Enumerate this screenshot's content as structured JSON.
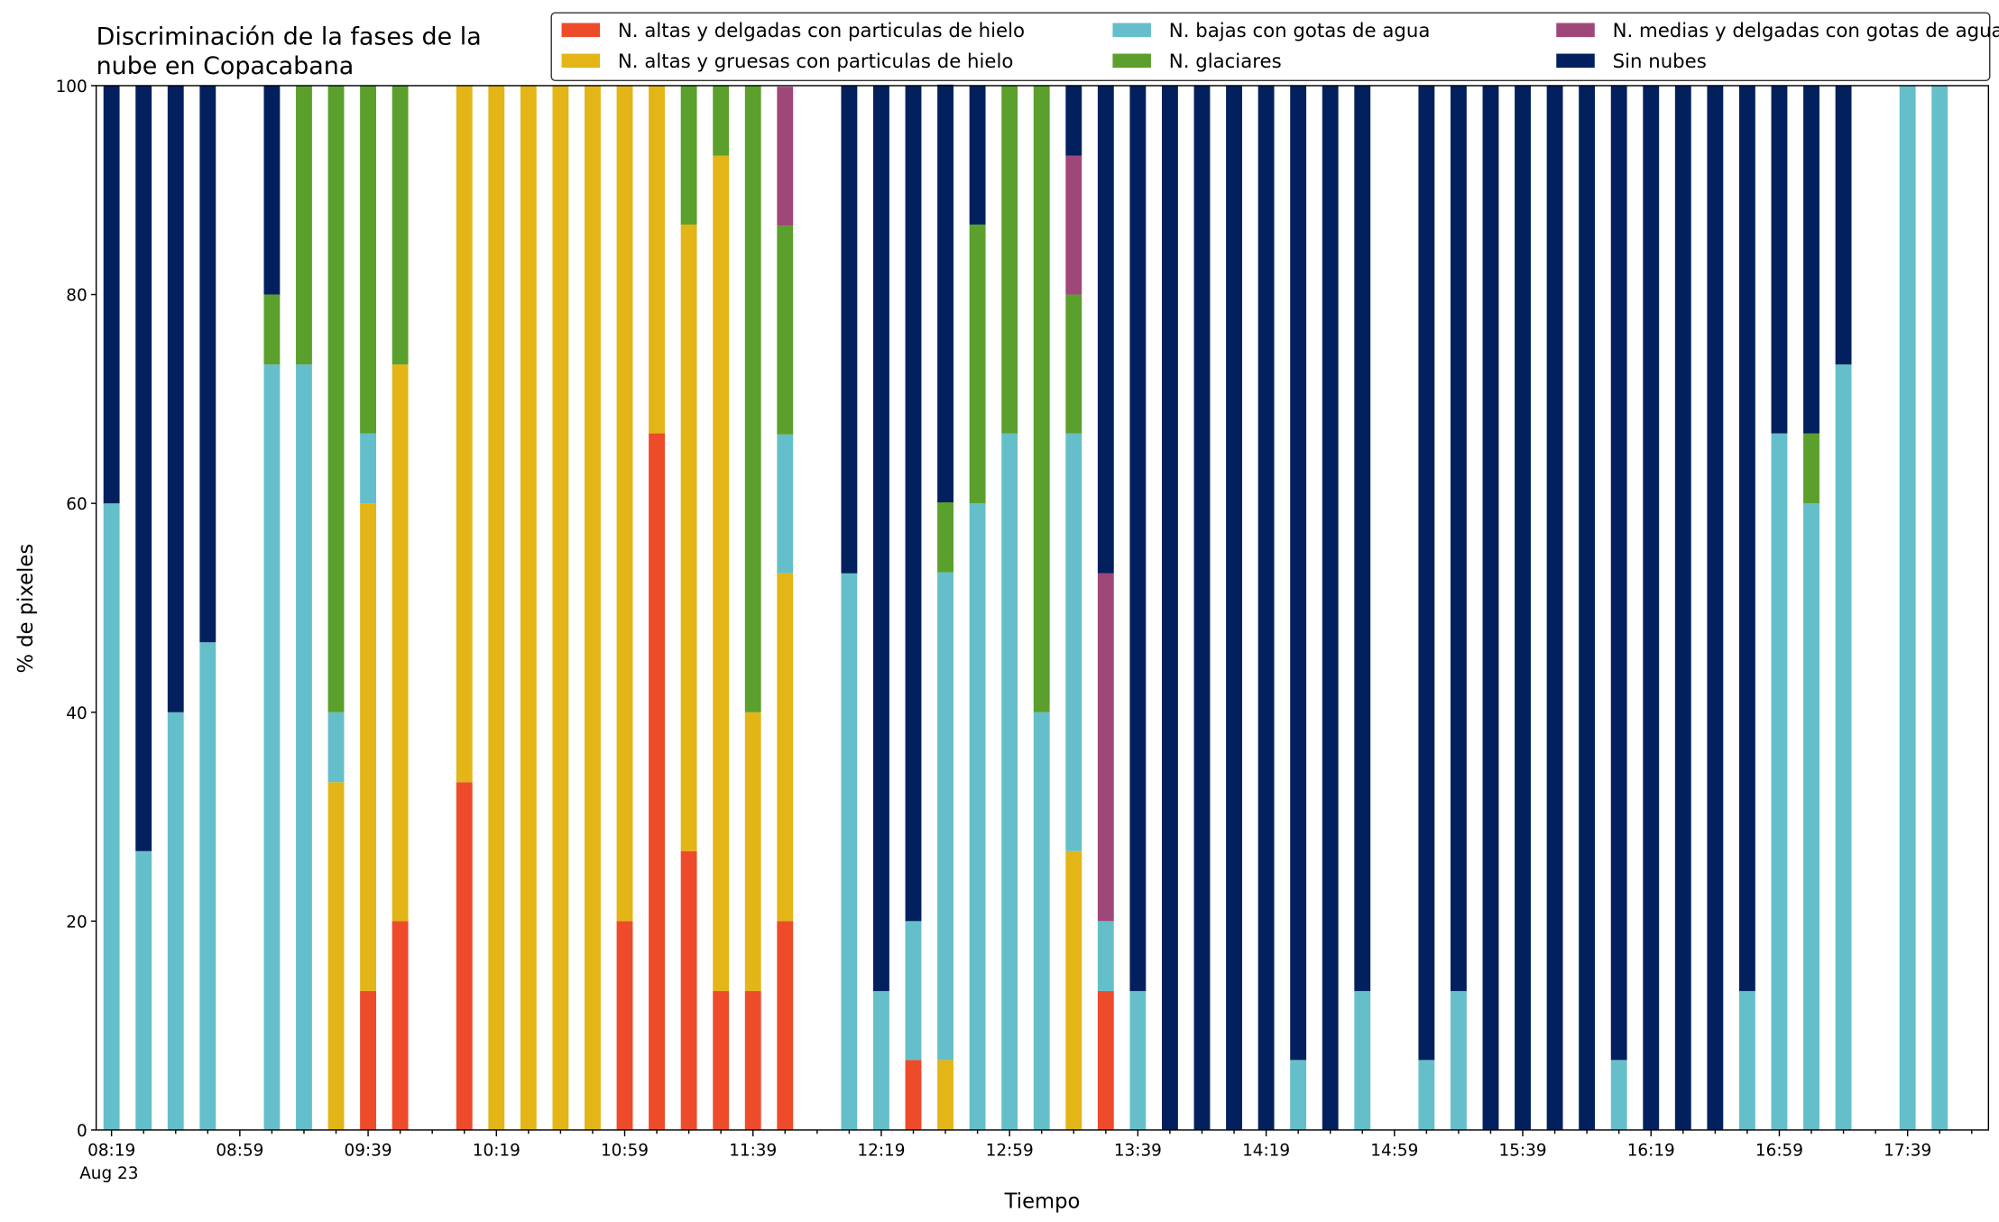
{
  "chart_data": {
    "type": "stacked_bar",
    "title": [
      "Discriminación de la fases de la",
      "nube en Copacabana"
    ],
    "x_label": "Tiempo",
    "y_label": "% de pixeles",
    "x_date_label": "Aug 23",
    "categories": [
      "08:19",
      null,
      null,
      null,
      "08:59",
      null,
      null,
      null,
      "09:39",
      null,
      null,
      null,
      "10:19",
      null,
      null,
      null,
      "10:59",
      null,
      null,
      null,
      "11:39",
      null,
      null,
      null,
      "12:19",
      null,
      null,
      null,
      "12:59",
      null,
      null,
      null,
      "13:39",
      null,
      null,
      null,
      "14:19",
      null,
      null,
      null,
      "14:59",
      null,
      null,
      null,
      "15:39",
      null,
      null,
      null,
      "16:19",
      null,
      null,
      null,
      "16:59",
      null,
      null,
      null,
      "17:39",
      null
    ],
    "ylim": [
      0,
      100
    ],
    "yticks": [
      0,
      20,
      40,
      60,
      80,
      100
    ],
    "grid": false,
    "legend_columns": 3,
    "series": [
      {
        "name": "N. altas y delgadas con particulas de hielo",
        "color": "#ee4b2b",
        "values": [
          0,
          0,
          0,
          0,
          0,
          0,
          0,
          0,
          13.3,
          20,
          0,
          33.3,
          0,
          0,
          0,
          0,
          20,
          66.7,
          26.7,
          13.3,
          13.3,
          20,
          0,
          0,
          0,
          6.7,
          0,
          0,
          0,
          0,
          0,
          13.3,
          0,
          0,
          0,
          0,
          0,
          0,
          0,
          0,
          0,
          0,
          0,
          0,
          0,
          0,
          0,
          0,
          0,
          0,
          0,
          0,
          0,
          0,
          0,
          0,
          0,
          0
        ]
      },
      {
        "name": "N. altas y gruesas con particulas de hielo",
        "color": "#e3b517",
        "values": [
          0,
          0,
          0,
          0,
          0,
          0,
          0,
          33.3,
          46.7,
          53.3,
          0,
          66.7,
          100,
          100,
          100,
          100,
          80,
          33.3,
          60,
          80,
          26.7,
          33.3,
          0,
          0,
          0,
          0,
          6.7,
          0,
          0,
          0,
          26.7,
          0,
          0,
          0,
          0,
          0,
          0,
          0,
          0,
          0,
          0,
          0,
          0,
          0,
          0,
          0,
          0,
          0,
          0,
          0,
          0,
          0,
          0,
          0,
          0,
          0,
          0,
          0
        ]
      },
      {
        "name": "N. bajas con gotas de agua",
        "color": "#65bfca",
        "values": [
          60,
          26.7,
          40,
          46.7,
          0,
          73.3,
          73.3,
          6.7,
          6.7,
          0,
          0,
          0,
          0,
          0,
          0,
          0,
          0,
          0,
          0,
          0,
          0,
          13.3,
          0,
          53.3,
          13.3,
          13.3,
          46.7,
          60,
          66.7,
          40,
          40,
          6.7,
          13.3,
          0,
          0,
          0,
          0,
          6.7,
          0,
          13.3,
          0,
          6.7,
          13.3,
          0,
          0,
          0,
          0,
          6.7,
          0,
          0,
          0,
          13.3,
          66.7,
          60,
          73.3,
          0,
          100,
          100
        ]
      },
      {
        "name": "N. glaciares",
        "color": "#5b9f2c",
        "values": [
          0,
          0,
          0,
          0,
          0,
          6.7,
          26.7,
          60,
          33.3,
          26.7,
          0,
          0,
          0,
          0,
          0,
          0,
          0,
          0,
          13.3,
          6.7,
          60,
          20,
          0,
          0,
          0,
          0,
          6.7,
          26.7,
          33.3,
          60,
          13.3,
          0,
          0,
          0,
          0,
          0,
          0,
          0,
          0,
          0,
          0,
          0,
          0,
          0,
          0,
          0,
          0,
          0,
          0,
          0,
          0,
          0,
          0,
          6.7,
          0,
          0,
          0,
          0
        ]
      },
      {
        "name": "N. medias y delgadas con gotas de agua",
        "color": "#a0477a",
        "values": [
          0,
          0,
          0,
          0,
          0,
          0,
          0,
          0,
          0,
          0,
          0,
          0,
          0,
          0,
          0,
          0,
          0,
          0,
          0,
          0,
          0,
          13.3,
          0,
          0,
          0,
          0,
          0,
          0,
          0,
          0,
          13.3,
          33.3,
          0,
          0,
          0,
          0,
          0,
          0,
          0,
          0,
          0,
          0,
          0,
          0,
          0,
          0,
          0,
          0,
          0,
          0,
          0,
          0,
          0,
          0,
          0,
          0,
          0,
          0
        ]
      },
      {
        "name": "Sin nubes",
        "color": "#03205e",
        "values": [
          40,
          73.3,
          60,
          53.3,
          0,
          20,
          0,
          0,
          0,
          0,
          0,
          0,
          0,
          0,
          0,
          0,
          0,
          0,
          0,
          0,
          0,
          0,
          0,
          46.7,
          86.7,
          80,
          40,
          13.3,
          0,
          0,
          6.7,
          46.7,
          86.7,
          100,
          100,
          100,
          100,
          93.3,
          100,
          86.7,
          0,
          93.3,
          86.7,
          100,
          100,
          100,
          100,
          93.3,
          100,
          100,
          100,
          86.7,
          33.3,
          33.3,
          26.7,
          0,
          0,
          0
        ]
      }
    ]
  }
}
